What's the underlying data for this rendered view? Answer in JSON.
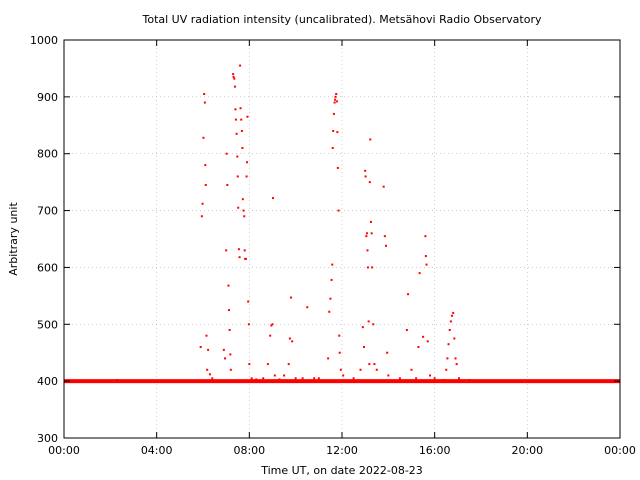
{
  "chart_data": {
    "type": "scatter",
    "title": "Total UV radiation intensity (uncalibrated). Metsähovi Radio Observatory",
    "xlabel": "Time UT, on date 2022-08-23",
    "ylabel": "Arbitrary unit",
    "xlim": [
      0,
      24
    ],
    "ylim": [
      300,
      1000
    ],
    "x_unit": "hours UT",
    "x_ticks": [
      {
        "value": 0,
        "label": "00:00"
      },
      {
        "value": 4,
        "label": "04:00"
      },
      {
        "value": 8,
        "label": "08:00"
      },
      {
        "value": 12,
        "label": "12:00"
      },
      {
        "value": 16,
        "label": "16:00"
      },
      {
        "value": 20,
        "label": "20:00"
      },
      {
        "value": 24,
        "label": "00:00"
      }
    ],
    "y_ticks": [
      300,
      400,
      500,
      600,
      700,
      800,
      900,
      1000
    ],
    "grid": true,
    "legend": "none",
    "baseline": {
      "value": 400,
      "x_start": 0,
      "x_end": 24
    },
    "series": [
      {
        "color": "#ff0000",
        "points": [
          [
            2.1,
            401
          ],
          [
            2.3,
            402
          ],
          [
            2.5,
            400
          ],
          [
            3.2,
            401
          ],
          [
            4.6,
            401
          ],
          [
            5.5,
            401
          ],
          [
            5.9,
            460
          ],
          [
            5.95,
            690
          ],
          [
            5.98,
            712
          ],
          [
            6.02,
            828
          ],
          [
            6.05,
            905
          ],
          [
            6.08,
            890
          ],
          [
            6.1,
            780
          ],
          [
            6.12,
            745
          ],
          [
            6.15,
            480
          ],
          [
            6.18,
            420
          ],
          [
            6.22,
            455
          ],
          [
            6.3,
            412
          ],
          [
            6.4,
            405
          ],
          [
            6.9,
            455
          ],
          [
            6.95,
            440
          ],
          [
            7.0,
            630
          ],
          [
            7.02,
            800
          ],
          [
            7.05,
            745
          ],
          [
            7.1,
            568
          ],
          [
            7.12,
            525
          ],
          [
            7.15,
            490
          ],
          [
            7.18,
            447
          ],
          [
            7.2,
            420
          ],
          [
            7.3,
            940
          ],
          [
            7.32,
            935
          ],
          [
            7.35,
            932
          ],
          [
            7.38,
            918
          ],
          [
            7.4,
            878
          ],
          [
            7.42,
            860
          ],
          [
            7.45,
            835
          ],
          [
            7.48,
            795
          ],
          [
            7.5,
            760
          ],
          [
            7.52,
            705
          ],
          [
            7.55,
            632
          ],
          [
            7.58,
            618
          ],
          [
            7.6,
            955
          ],
          [
            7.62,
            880
          ],
          [
            7.65,
            860
          ],
          [
            7.68,
            840
          ],
          [
            7.7,
            810
          ],
          [
            7.72,
            720
          ],
          [
            7.75,
            700
          ],
          [
            7.78,
            690
          ],
          [
            7.8,
            630
          ],
          [
            7.82,
            615
          ],
          [
            7.85,
            615
          ],
          [
            7.88,
            760
          ],
          [
            7.9,
            785
          ],
          [
            7.92,
            865
          ],
          [
            7.95,
            540
          ],
          [
            7.98,
            500
          ],
          [
            8.0,
            430
          ],
          [
            8.1,
            405
          ],
          [
            8.3,
            403
          ],
          [
            8.6,
            405
          ],
          [
            8.8,
            430
          ],
          [
            8.9,
            480
          ],
          [
            8.95,
            498
          ],
          [
            9.0,
            500
          ],
          [
            9.02,
            722
          ],
          [
            9.1,
            410
          ],
          [
            9.3,
            403
          ],
          [
            9.5,
            410
          ],
          [
            9.7,
            430
          ],
          [
            9.75,
            475
          ],
          [
            9.8,
            547
          ],
          [
            9.85,
            470
          ],
          [
            10.0,
            405
          ],
          [
            10.3,
            405
          ],
          [
            10.5,
            530
          ],
          [
            10.8,
            405
          ],
          [
            11.0,
            405
          ],
          [
            11.4,
            440
          ],
          [
            11.45,
            522
          ],
          [
            11.5,
            545
          ],
          [
            11.55,
            578
          ],
          [
            11.58,
            605
          ],
          [
            11.6,
            810
          ],
          [
            11.62,
            840
          ],
          [
            11.65,
            870
          ],
          [
            11.68,
            890
          ],
          [
            11.7,
            895
          ],
          [
            11.72,
            900
          ],
          [
            11.75,
            905
          ],
          [
            11.78,
            892
          ],
          [
            11.8,
            838
          ],
          [
            11.82,
            775
          ],
          [
            11.85,
            700
          ],
          [
            11.88,
            480
          ],
          [
            11.9,
            450
          ],
          [
            11.95,
            420
          ],
          [
            12.05,
            410
          ],
          [
            12.5,
            405
          ],
          [
            12.8,
            420
          ],
          [
            12.9,
            495
          ],
          [
            12.95,
            460
          ],
          [
            13.0,
            770
          ],
          [
            13.02,
            760
          ],
          [
            13.05,
            655
          ],
          [
            13.08,
            660
          ],
          [
            13.1,
            630
          ],
          [
            13.12,
            600
          ],
          [
            13.15,
            505
          ],
          [
            13.18,
            430
          ],
          [
            13.2,
            750
          ],
          [
            13.22,
            825
          ],
          [
            13.25,
            680
          ],
          [
            13.28,
            660
          ],
          [
            13.3,
            600
          ],
          [
            13.35,
            500
          ],
          [
            13.4,
            430
          ],
          [
            13.5,
            420
          ],
          [
            13.8,
            742
          ],
          [
            13.85,
            655
          ],
          [
            13.9,
            638
          ],
          [
            13.95,
            450
          ],
          [
            14.0,
            410
          ],
          [
            14.5,
            405
          ],
          [
            14.8,
            490
          ],
          [
            14.85,
            553
          ],
          [
            15.0,
            420
          ],
          [
            15.2,
            405
          ],
          [
            15.3,
            460
          ],
          [
            15.35,
            590
          ],
          [
            15.5,
            478
          ],
          [
            15.6,
            655
          ],
          [
            15.62,
            620
          ],
          [
            15.65,
            605
          ],
          [
            15.7,
            470
          ],
          [
            15.8,
            410
          ],
          [
            16.0,
            405
          ],
          [
            16.4,
            402
          ],
          [
            16.5,
            420
          ],
          [
            16.55,
            440
          ],
          [
            16.6,
            465
          ],
          [
            16.65,
            490
          ],
          [
            16.7,
            505
          ],
          [
            16.75,
            515
          ],
          [
            16.8,
            520
          ],
          [
            16.85,
            475
          ],
          [
            16.9,
            440
          ],
          [
            16.95,
            430
          ],
          [
            17.05,
            405
          ],
          [
            17.5,
            402
          ],
          [
            18.5,
            401
          ],
          [
            19.0,
            401
          ],
          [
            21.0,
            401
          ],
          [
            23.9,
            401
          ]
        ]
      }
    ]
  }
}
